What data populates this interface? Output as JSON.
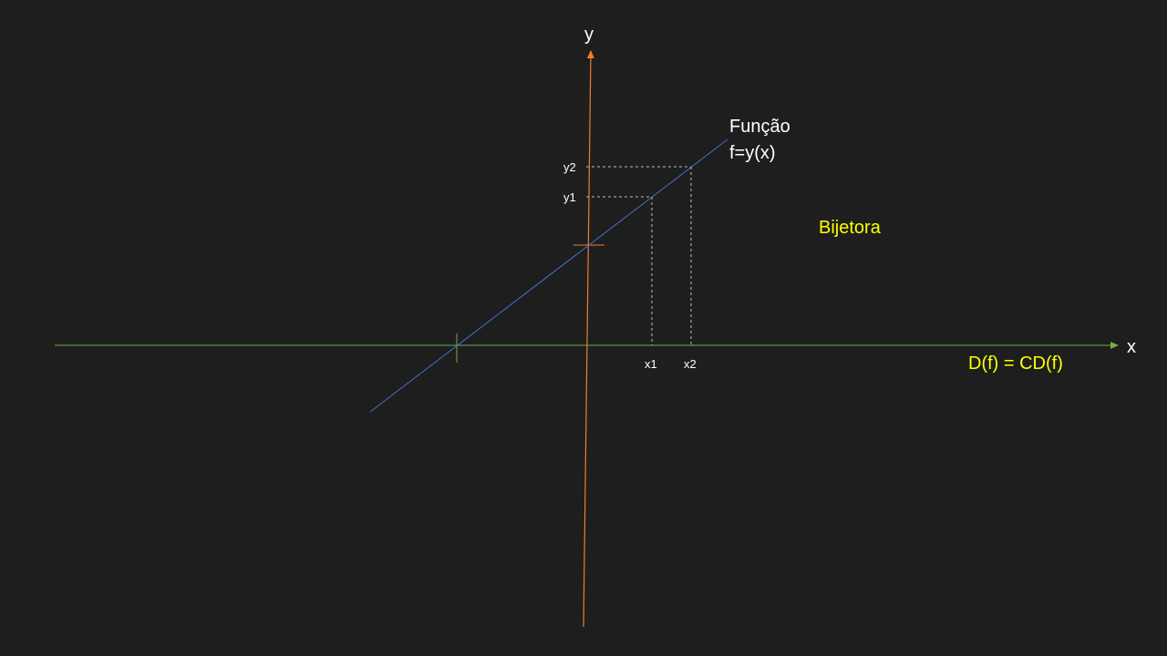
{
  "axes": {
    "x_label": "x",
    "y_label": "y"
  },
  "function": {
    "name": "Função",
    "formula": "f=y(x)"
  },
  "points": {
    "x1": "x1",
    "x2": "x2",
    "y1": "y1",
    "y2": "y2"
  },
  "annotations": {
    "classification": "Bijetora",
    "domain_equals_codomain": "D(f) = CD(f)"
  },
  "colors": {
    "background": "#1e1e1e",
    "x_axis": "#70ad47",
    "y_axis": "#ed7d31",
    "function_line": "#4472c4",
    "guide_lines": "#bfbfbf",
    "highlight_text": "#ffff00",
    "text": "#ffffff"
  }
}
